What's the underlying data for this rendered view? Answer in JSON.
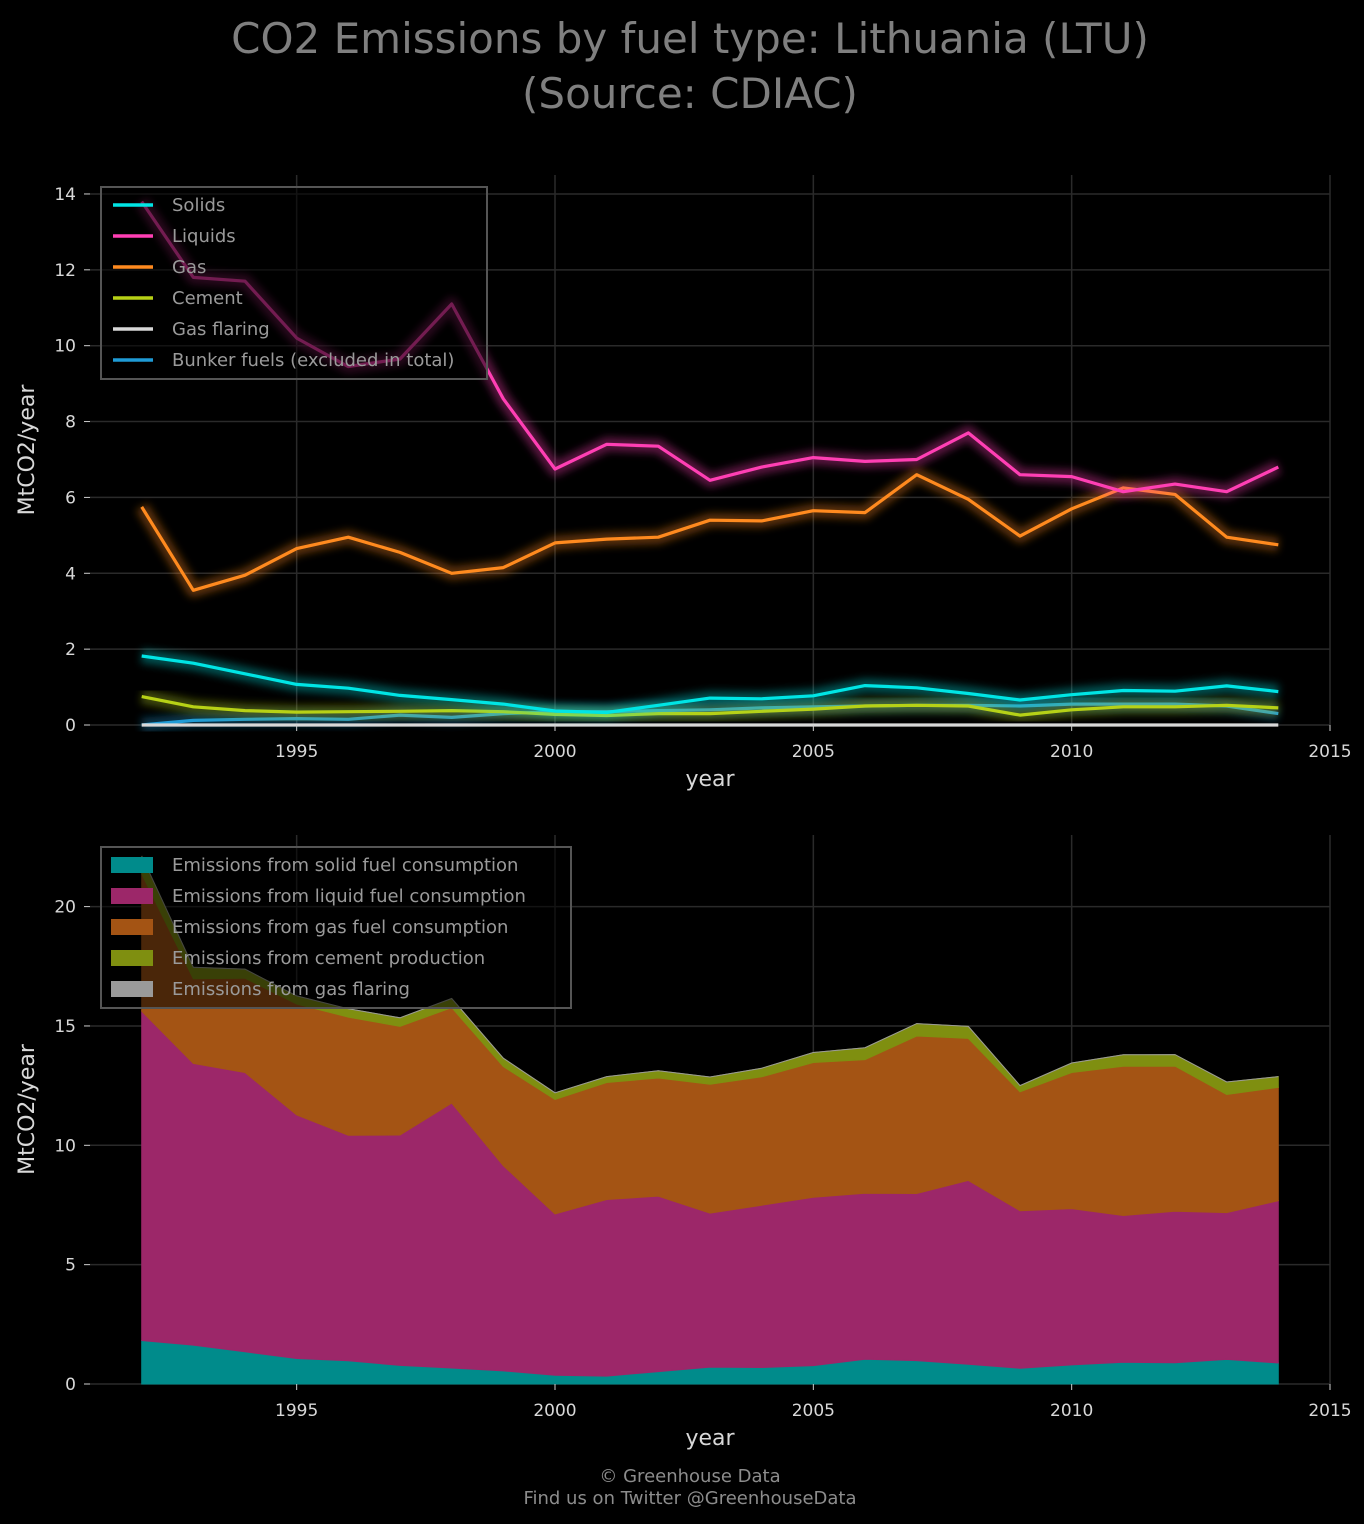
{
  "title": {
    "line1": "CO2 Emissions by fuel type: Lithuania (LTU)",
    "line2": "(Source: CDIAC)"
  },
  "credit": {
    "line1": "© Greenhouse Data",
    "line2": "Find us on Twitter @GreenhouseData"
  },
  "chart_data": [
    {
      "type": "line",
      "xlabel": "year",
      "ylabel": "MtCO2/year",
      "xlim": [
        1991,
        2015
      ],
      "ylim": [
        0,
        14.5
      ],
      "xticks": [
        1995,
        2000,
        2005,
        2010,
        2015
      ],
      "yticks": [
        0,
        2,
        4,
        6,
        8,
        10,
        12,
        14
      ],
      "grid": true,
      "legend_position": "top-left",
      "x": [
        1992,
        1993,
        1994,
        1995,
        1996,
        1997,
        1998,
        1999,
        2000,
        2001,
        2002,
        2003,
        2004,
        2005,
        2006,
        2007,
        2008,
        2009,
        2010,
        2011,
        2012,
        2013,
        2014
      ],
      "series": [
        {
          "name": "Solids",
          "color": "#00e5e5",
          "values": [
            1.82,
            1.63,
            1.35,
            1.07,
            0.97,
            0.78,
            0.67,
            0.55,
            0.37,
            0.33,
            0.52,
            0.71,
            0.69,
            0.77,
            1.04,
            0.98,
            0.83,
            0.66,
            0.8,
            0.91,
            0.89,
            1.03,
            0.88
          ]
        },
        {
          "name": "Liquids",
          "color": "#ff3fb4",
          "values": [
            13.8,
            11.8,
            11.7,
            10.2,
            9.45,
            9.65,
            11.1,
            8.6,
            6.75,
            7.4,
            7.35,
            6.45,
            6.8,
            7.05,
            6.95,
            7.0,
            7.7,
            6.6,
            6.55,
            6.15,
            6.35,
            6.15,
            6.8
          ]
        },
        {
          "name": "Gas",
          "color": "#ff8a1f",
          "values": [
            5.75,
            3.55,
            3.95,
            4.65,
            4.95,
            4.55,
            4.0,
            4.15,
            4.8,
            4.9,
            4.95,
            5.4,
            5.38,
            5.65,
            5.6,
            6.6,
            5.95,
            4.98,
            5.7,
            6.25,
            6.08,
            4.95,
            4.75
          ]
        },
        {
          "name": "Cement",
          "color": "#b7d116",
          "values": [
            0.75,
            0.48,
            0.38,
            0.34,
            0.35,
            0.36,
            0.38,
            0.35,
            0.28,
            0.25,
            0.3,
            0.3,
            0.36,
            0.42,
            0.5,
            0.52,
            0.5,
            0.26,
            0.4,
            0.48,
            0.48,
            0.52,
            0.45
          ]
        },
        {
          "name": "Gas flaring",
          "color": "#d8d8d8",
          "values": [
            0,
            0,
            0,
            0,
            0,
            0,
            0,
            0,
            0,
            0,
            0,
            0,
            0,
            0,
            0,
            0,
            0,
            0,
            0,
            0,
            0,
            0,
            0
          ]
        },
        {
          "name": "Bunker fuels (excluded in total)",
          "color": "#1f9bd6",
          "values": [
            0.0,
            0.12,
            0.15,
            0.17,
            0.15,
            0.26,
            0.2,
            0.3,
            0.35,
            0.35,
            0.38,
            0.4,
            0.45,
            0.48,
            0.5,
            0.52,
            0.52,
            0.5,
            0.55,
            0.55,
            0.55,
            0.5,
            0.3
          ]
        }
      ]
    },
    {
      "type": "area",
      "stacked": true,
      "xlabel": "year",
      "ylabel": "MtCO2/year",
      "xlim": [
        1991,
        2015
      ],
      "ylim": [
        0,
        23
      ],
      "xticks": [
        1995,
        2000,
        2005,
        2010,
        2015
      ],
      "yticks": [
        0,
        5,
        10,
        15,
        20
      ],
      "grid": true,
      "legend_position": "top-left",
      "x": [
        1992,
        1993,
        1994,
        1995,
        1996,
        1997,
        1998,
        1999,
        2000,
        2001,
        2002,
        2003,
        2004,
        2005,
        2006,
        2007,
        2008,
        2009,
        2010,
        2011,
        2012,
        2013,
        2014
      ],
      "series": [
        {
          "name": "Emissions from solid fuel consumption",
          "color": "#008b8b",
          "values": [
            1.82,
            1.63,
            1.35,
            1.07,
            0.97,
            0.78,
            0.67,
            0.55,
            0.37,
            0.33,
            0.52,
            0.71,
            0.69,
            0.77,
            1.04,
            0.98,
            0.83,
            0.66,
            0.8,
            0.91,
            0.89,
            1.03,
            0.88
          ]
        },
        {
          "name": "Emissions from liquid fuel consumption",
          "color": "#9c2769",
          "values": [
            13.8,
            11.8,
            11.7,
            10.2,
            9.45,
            9.65,
            11.1,
            8.6,
            6.75,
            7.4,
            7.35,
            6.45,
            6.8,
            7.05,
            6.95,
            7.0,
            7.7,
            6.6,
            6.55,
            6.15,
            6.35,
            6.15,
            6.8
          ]
        },
        {
          "name": "Emissions from gas fuel consumption",
          "color": "#a45414",
          "values": [
            5.75,
            3.55,
            3.95,
            4.65,
            4.95,
            4.55,
            4.0,
            4.15,
            4.8,
            4.9,
            4.95,
            5.4,
            5.38,
            5.65,
            5.6,
            6.6,
            5.95,
            4.98,
            5.7,
            6.25,
            6.08,
            4.95,
            4.75
          ]
        },
        {
          "name": "Emissions from cement production",
          "color": "#7f8f10",
          "values": [
            0.75,
            0.48,
            0.38,
            0.34,
            0.35,
            0.36,
            0.38,
            0.35,
            0.28,
            0.25,
            0.3,
            0.3,
            0.36,
            0.42,
            0.5,
            0.52,
            0.5,
            0.26,
            0.4,
            0.48,
            0.48,
            0.52,
            0.45
          ]
        },
        {
          "name": "Emissions from gas flaring",
          "color": "#9a9a9a",
          "values": [
            0,
            0,
            0,
            0,
            0,
            0,
            0,
            0,
            0,
            0,
            0,
            0,
            0,
            0,
            0,
            0,
            0,
            0,
            0,
            0,
            0,
            0,
            0
          ]
        }
      ]
    }
  ]
}
